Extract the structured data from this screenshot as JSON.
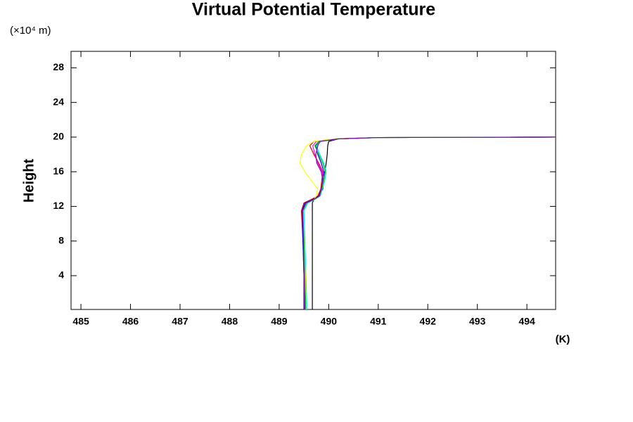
{
  "chart_data": {
    "type": "line",
    "title": "Virtual Potential Temperature",
    "y_unit": "(×10⁴ m)",
    "y_label": "Height",
    "x_unit": "(K)",
    "xlim": [
      484.8,
      494.58
    ],
    "xticks": [
      485,
      486,
      487,
      488,
      489,
      490,
      491,
      492,
      493,
      494
    ],
    "ylim": [
      0.1,
      29.9
    ],
    "yticks": [
      4,
      8,
      12,
      16,
      20,
      24,
      28
    ],
    "y": [
      0.1,
      4,
      8,
      11.5,
      12.4,
      12.8,
      13.2,
      14,
      15,
      16,
      17,
      18,
      19,
      19.5,
      19.8,
      19.95,
      20.0
    ],
    "series": [
      {
        "color": "#000000",
        "values": [
          489.67,
          489.67,
          489.67,
          489.67,
          489.67,
          489.7,
          489.8,
          489.88,
          489.9,
          489.92,
          489.95,
          489.97,
          489.98,
          490.0,
          490.2,
          491.0,
          494.58
        ]
      },
      {
        "color": "#ff0000",
        "values": [
          489.52,
          489.5,
          489.48,
          489.45,
          489.5,
          489.65,
          489.78,
          489.84,
          489.86,
          489.88,
          489.8,
          489.7,
          489.62,
          489.7,
          490.15,
          491.0,
          494.58
        ]
      },
      {
        "color": "#0000ff",
        "values": [
          489.5,
          489.5,
          489.48,
          489.46,
          489.52,
          489.68,
          489.8,
          489.85,
          489.88,
          489.9,
          489.85,
          489.78,
          489.74,
          489.8,
          490.2,
          491.05,
          494.58
        ]
      },
      {
        "color": "#ff00ff",
        "values": [
          489.53,
          489.52,
          489.5,
          489.47,
          489.55,
          489.7,
          489.82,
          489.86,
          489.9,
          489.87,
          489.78,
          489.72,
          489.68,
          489.75,
          490.18,
          491.0,
          494.58
        ]
      },
      {
        "color": "#00e5ff",
        "values": [
          489.56,
          489.54,
          489.52,
          489.5,
          489.58,
          489.72,
          489.83,
          489.87,
          489.92,
          489.95,
          489.9,
          489.82,
          489.75,
          489.85,
          490.22,
          491.05,
          494.58
        ]
      },
      {
        "color": "#ffff00",
        "values": [
          489.55,
          489.53,
          489.5,
          489.48,
          489.55,
          489.7,
          489.75,
          489.78,
          489.65,
          489.52,
          489.42,
          489.45,
          489.55,
          489.7,
          490.1,
          491.0,
          494.58
        ]
      },
      {
        "color": "#00cc00",
        "values": [
          489.54,
          489.52,
          489.5,
          489.48,
          489.56,
          489.71,
          489.82,
          489.86,
          489.9,
          489.93,
          489.88,
          489.8,
          489.72,
          489.8,
          490.2,
          491.02,
          494.58
        ]
      },
      {
        "color": "#8000c0",
        "values": [
          489.51,
          489.5,
          489.49,
          489.47,
          489.54,
          489.69,
          489.81,
          489.85,
          489.88,
          489.85,
          489.76,
          489.74,
          489.78,
          489.82,
          490.2,
          491.0,
          494.58
        ]
      }
    ]
  }
}
